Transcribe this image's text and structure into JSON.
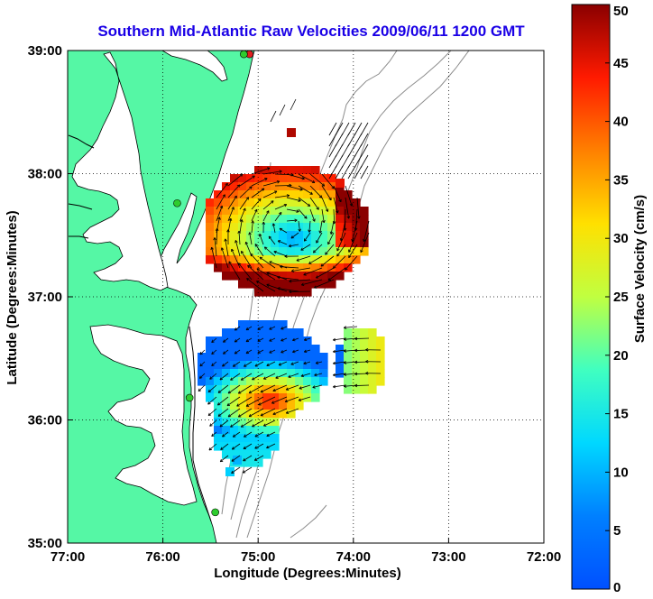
{
  "title": "Southern Mid-Atlantic Raw Velocities 2009/06/11 1200 GMT",
  "x_axis": {
    "label": "Longitude (Degrees:Minutes)",
    "ticks": [
      "77:00",
      "76:00",
      "75:00",
      "74:00",
      "73:00",
      "72:00"
    ]
  },
  "y_axis": {
    "label": "Latitude (Degrees:Minutes)",
    "ticks": [
      "39:00",
      "38:00",
      "37:00",
      "36:00",
      "35:00"
    ]
  },
  "colorbar": {
    "label": "Surface Velocity (cm/s)",
    "ticks": [
      "50",
      "45",
      "40",
      "35",
      "30",
      "25",
      "20",
      "15",
      "10",
      "5",
      "0"
    ],
    "min": 0,
    "max": 50
  },
  "colors": {
    "land": "#55f7a5",
    "title": "#1a00e6",
    "radar_station": "#2ecc2e",
    "radar_station_alt": "#e02020"
  },
  "map": {
    "lon_range": [
      -77,
      -72
    ],
    "lat_range": [
      35,
      39
    ],
    "grid": "dotted",
    "radar_sites": [
      {
        "lon": -75.09,
        "lat": 38.97,
        "type": "alt"
      },
      {
        "lon": -75.15,
        "lat": 38.97,
        "type": "normal"
      },
      {
        "lon": -75.85,
        "lat": 37.76,
        "type": "normal"
      },
      {
        "lon": -75.72,
        "lat": 36.18,
        "type": "normal"
      },
      {
        "lon": -75.45,
        "lat": 35.25,
        "type": "normal"
      }
    ]
  }
}
